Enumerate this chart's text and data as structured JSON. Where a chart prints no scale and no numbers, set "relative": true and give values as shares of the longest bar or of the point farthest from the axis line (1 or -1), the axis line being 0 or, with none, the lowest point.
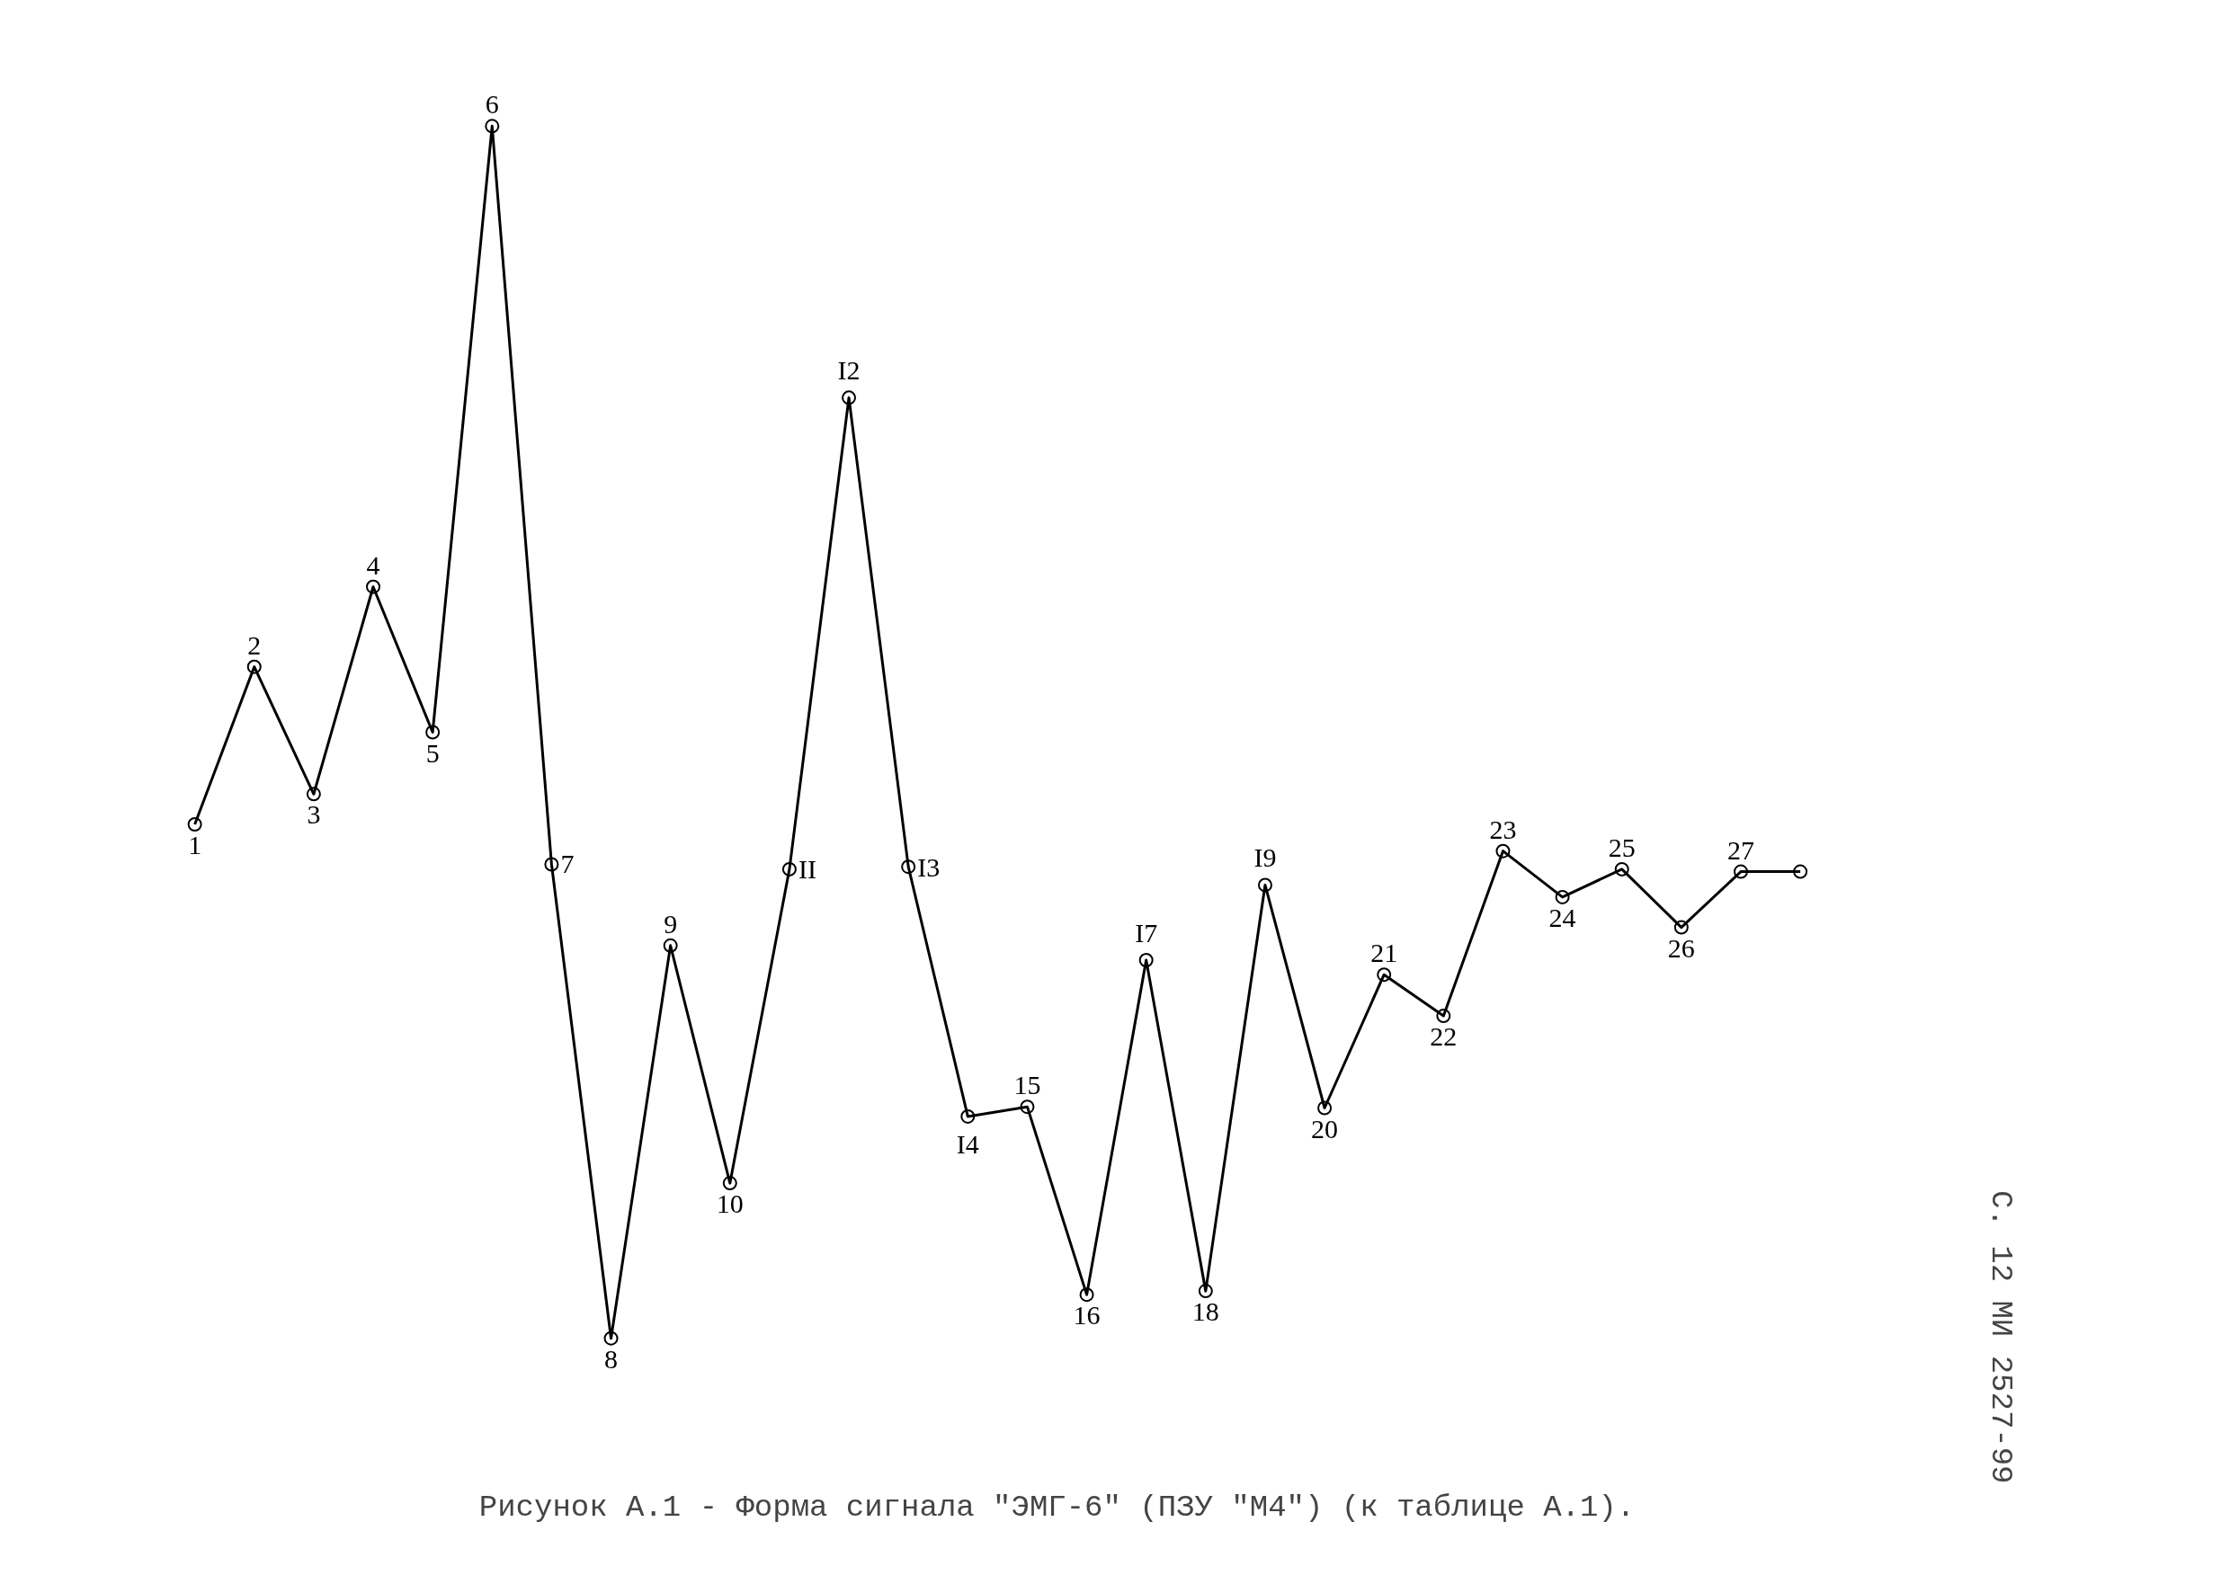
{
  "chart_data": {
    "type": "line",
    "relative": true,
    "title": "Рисунок А.1 - Форма сигнала \"ЭМГ-6\" (ПЗУ \"М4\") (к таблице А.1).",
    "annotations": [
      "С. 12 МИ 2527-99",
      "1",
      "2",
      "3",
      "4",
      "5",
      "6",
      "7",
      "8",
      "9",
      "10",
      "II",
      "I2",
      "I3",
      "I4",
      "15",
      "16",
      "I7",
      "18",
      "I9",
      "20",
      "21",
      "22",
      "23",
      "24",
      "25",
      "26",
      "27"
    ],
    "categories": [
      null,
      null,
      null,
      null,
      null,
      null,
      null,
      null,
      null,
      null,
      null,
      null,
      null,
      null,
      null,
      null,
      null,
      null,
      null,
      null,
      null,
      null,
      null,
      null,
      null,
      null,
      null,
      null
    ],
    "series": [
      {
        "color": "#000000",
        "values": [
          0.424,
          0.554,
          0.449,
          0.62,
          0.5,
          1.0,
          0.391,
          0,
          0.324,
          0.128,
          0.387,
          0.776,
          0.389,
          0.183,
          0.191,
          0.036,
          0.312,
          0.039,
          0.374,
          0.19,
          0.3,
          0.266,
          0.402,
          0.364,
          0.387,
          0.339,
          0.385,
          0.385
        ]
      }
    ],
    "marker": "circle",
    "line_style": "solid",
    "grid": false
  }
}
